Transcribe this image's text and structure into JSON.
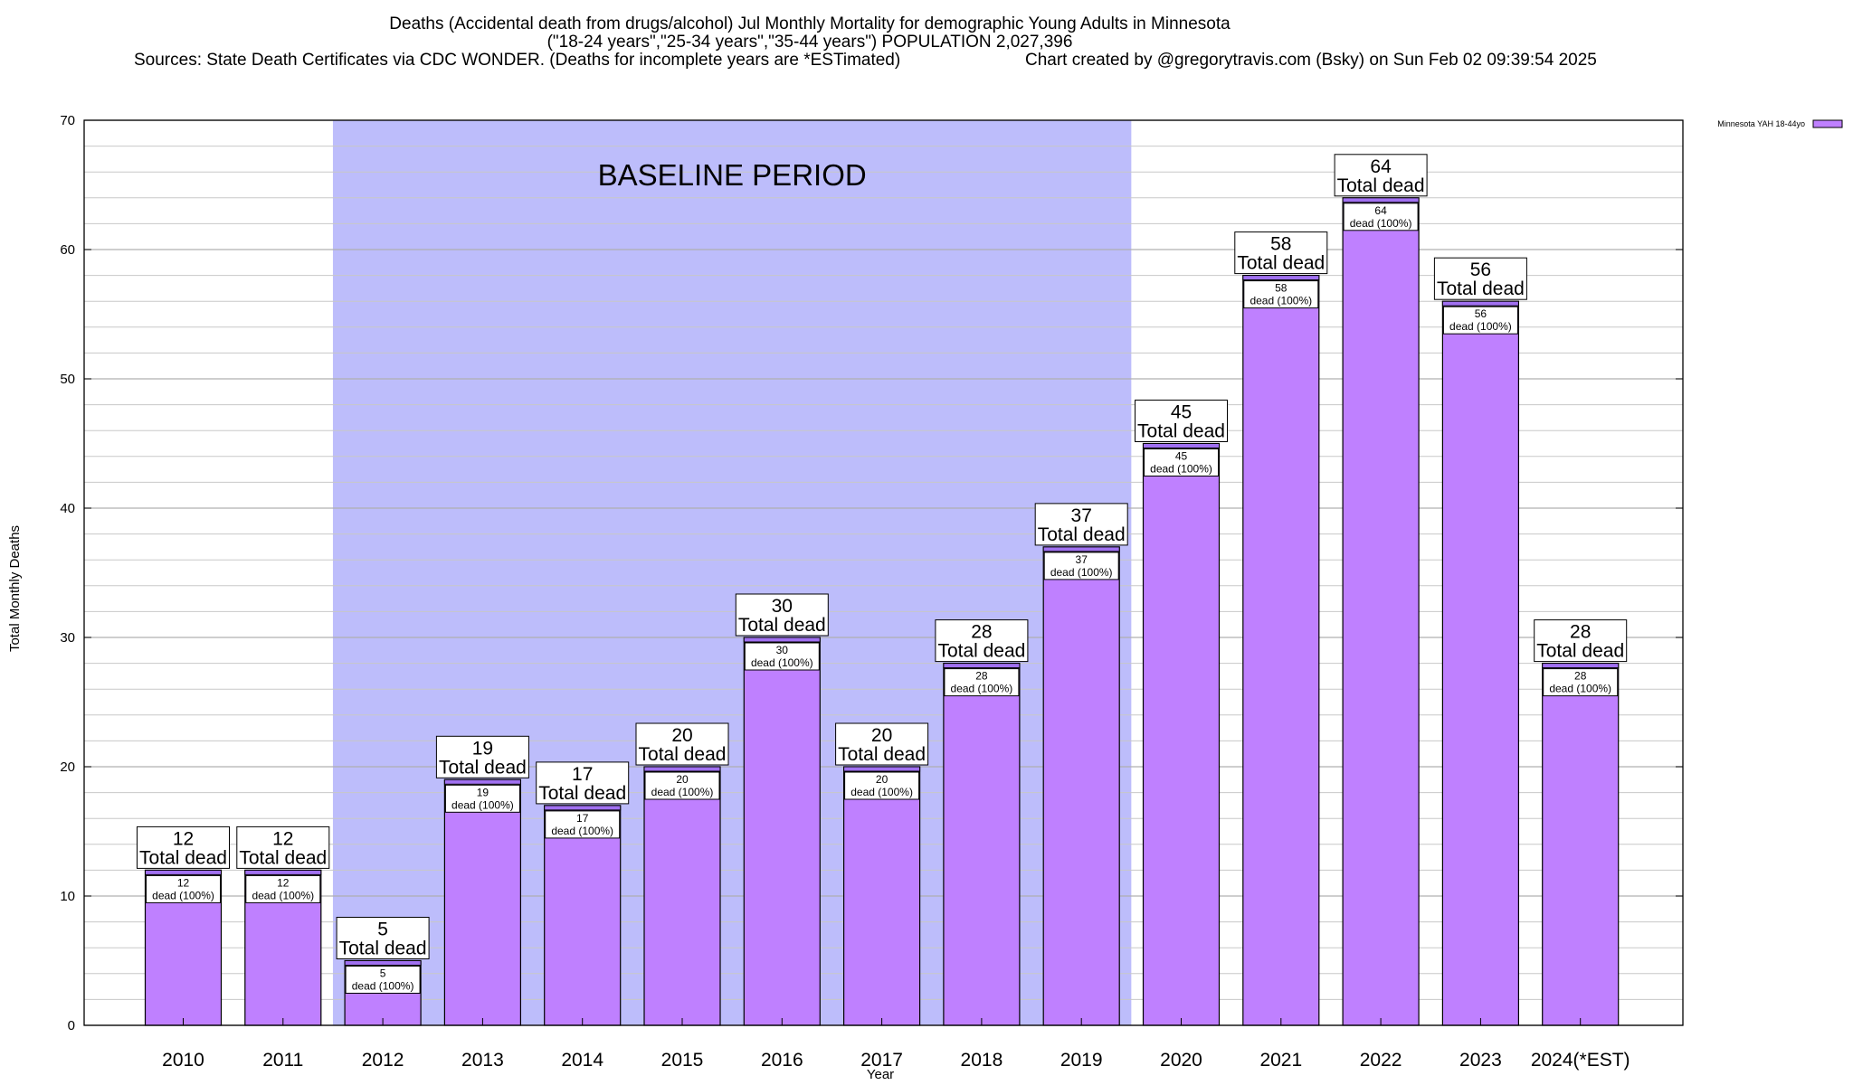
{
  "chart_data": {
    "type": "bar",
    "title_lines": [
      "Deaths (Accidental death from drugs/alcohol) Jul Monthly Mortality for demographic Young Adults in Minnesota",
      "(\"18-24 years\",\"25-34 years\",\"35-44 years\") POPULATION 2,027,396"
    ],
    "sources_text": "Sources: State Death Certificates via CDC WONDER. (Deaths for incomplete years are *ESTimated)",
    "credit_text": "Chart created by @gregorytravis.com (Bsky) on Sun Feb 02 09:39:54 2025",
    "xlabel": "Year",
    "ylabel": "Total Monthly Deaths",
    "ylim": [
      0,
      70
    ],
    "y_major_ticks": [
      0,
      10,
      20,
      30,
      40,
      50,
      60,
      70
    ],
    "y_minor_step": 2,
    "categories": [
      "2010",
      "2011",
      "2012",
      "2013",
      "2014",
      "2015",
      "2016",
      "2017",
      "2018",
      "2019",
      "2020",
      "2021",
      "2022",
      "2023",
      "2024(*EST)"
    ],
    "series": [
      {
        "name": "Minnesota YAH 18-44yo",
        "values": [
          12,
          12,
          5,
          19,
          17,
          20,
          30,
          20,
          28,
          37,
          45,
          58,
          64,
          56,
          28
        ]
      }
    ],
    "total_label_suffix": "Total dead",
    "inner_label_suffix": "dead (100%)",
    "baseline": {
      "label": "BASELINE PERIOD",
      "from_category": "2012",
      "to_category": "2019"
    },
    "legend_position": "top-right",
    "colors": {
      "bar_fill": "#bf80ff",
      "bar_cap": "#a070f0",
      "baseline_fill": "#bdbdfb",
      "grid": "#c8c8c8",
      "axis": "#000000"
    }
  }
}
